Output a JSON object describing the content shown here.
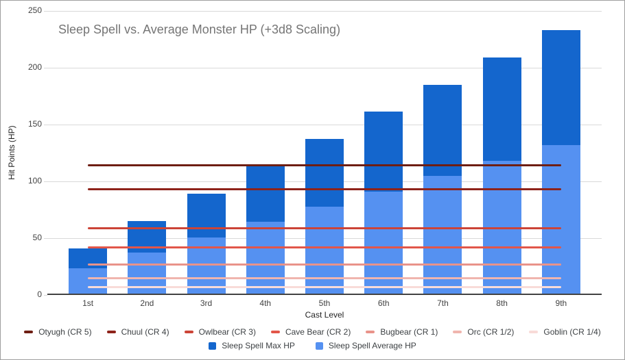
{
  "chart_data": {
    "type": "bar",
    "title": "Sleep Spell vs. Average Monster HP (+3d8 Scaling)",
    "xlabel": "Cast Level",
    "ylabel": "Hit Points (HP)",
    "ylim": [
      0,
      250
    ],
    "yticks": [
      0,
      50,
      100,
      150,
      200,
      250
    ],
    "grid": "horizontal",
    "legend_position": "bottom",
    "categories": [
      "1st",
      "2nd",
      "3rd",
      "4th",
      "5th",
      "6th",
      "7th",
      "8th",
      "9th"
    ],
    "bar_series": [
      {
        "name": "Sleep Spell Max HP",
        "color": "#1466cd",
        "values": [
          40,
          64,
          88,
          112,
          136,
          160,
          184,
          208,
          232
        ]
      },
      {
        "name": "Sleep Spell Average HP",
        "color": "#5591f1",
        "values": [
          22.5,
          36,
          49.5,
          63,
          76.5,
          90,
          103.5,
          117,
          130.5
        ]
      }
    ],
    "bar_note": "Bars are overlaid from zero: light Average HP bar drawn in front of dark Max HP bar",
    "line_series": [
      {
        "name": "Otyugh (CR 5)",
        "color": "#6e1e13",
        "value": 114
      },
      {
        "name": "Chuul (CR 4)",
        "color": "#8e231a",
        "value": 93
      },
      {
        "name": "Owlbear (CR 3)",
        "color": "#cc4437",
        "value": 59
      },
      {
        "name": "Cave Bear (CR 2)",
        "color": "#e25649",
        "value": 42
      },
      {
        "name": "Bugbear (CR 1)",
        "color": "#e9938a",
        "value": 27
      },
      {
        "name": "Orc (CR 1/2)",
        "color": "#f0b5ae",
        "value": 15
      },
      {
        "name": "Goblin (CR 1/4)",
        "color": "#f8dbd8",
        "value": 7
      }
    ],
    "colors": {
      "gridline": "#d9d9d9",
      "axis_line": "#424242",
      "title_text": "#757575",
      "tick_text": "#424242",
      "border": "#9e9e9e"
    }
  }
}
